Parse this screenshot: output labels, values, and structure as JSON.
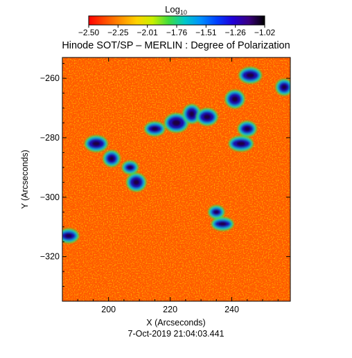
{
  "chart_data": {
    "type": "heatmap",
    "title": "Hinode SOT/SP – MERLIN : Degree of Polarization",
    "xlabel": "X (Arcseconds)",
    "ylabel": "Y (Arcseconds)",
    "footer": "7-Oct-2019 21:04:03.441",
    "colorbar": {
      "label_base": "Log",
      "label_sub": "10",
      "min": -2.5,
      "max": -1.02,
      "ticks": [
        "-2.50",
        "-2.25",
        "-2.01",
        "-1.76",
        "-1.51",
        "-1.26",
        "-1.02"
      ],
      "colors": [
        "#ff0000",
        "#ff4a00",
        "#ff9000",
        "#ffd200",
        "#c8f000",
        "#3fdc3f",
        "#00c8c8",
        "#0090ff",
        "#0040ff",
        "#2000d8",
        "#3a0080",
        "#000000"
      ]
    },
    "xlim": [
      185,
      259
    ],
    "ylim": [
      -335,
      -253
    ],
    "xticks": [
      200,
      220,
      240
    ],
    "yticks": [
      -260,
      -280,
      -300,
      -320
    ],
    "grid": false,
    "high_polarization_regions": [
      {
        "x": 207,
        "y": -290
      },
      {
        "x": 209,
        "y": -295
      },
      {
        "x": 196,
        "y": -282
      },
      {
        "x": 201,
        "y": -287
      },
      {
        "x": 215,
        "y": -277
      },
      {
        "x": 222,
        "y": -275
      },
      {
        "x": 227,
        "y": -272
      },
      {
        "x": 232,
        "y": -273
      },
      {
        "x": 243,
        "y": -282
      },
      {
        "x": 245,
        "y": -277
      },
      {
        "x": 237,
        "y": -309
      },
      {
        "x": 235,
        "y": -305
      },
      {
        "x": 241,
        "y": -267
      },
      {
        "x": 246,
        "y": -259
      },
      {
        "x": 257,
        "y": -263
      },
      {
        "x": 187,
        "y": -313
      }
    ]
  }
}
